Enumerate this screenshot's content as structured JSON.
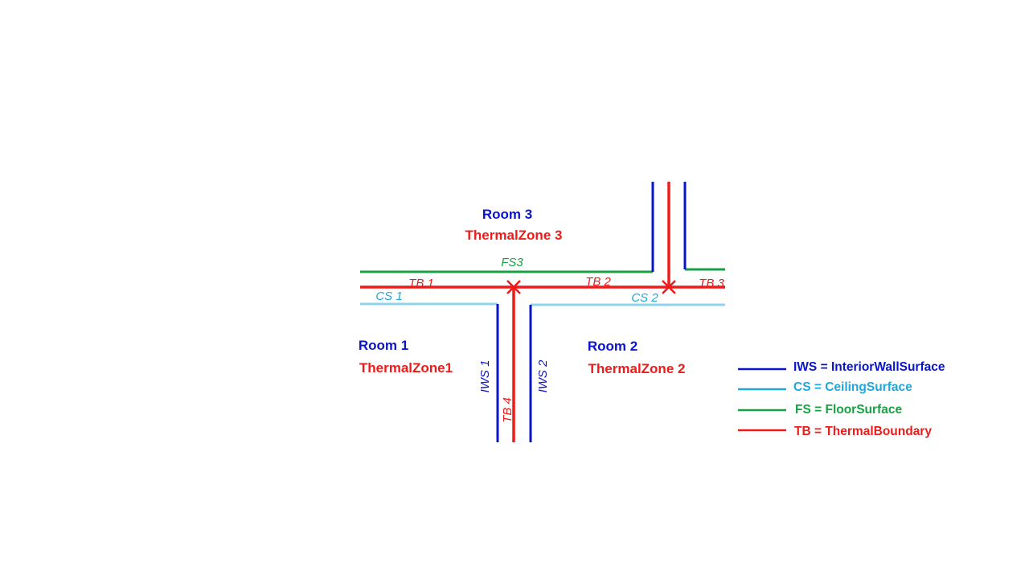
{
  "colors": {
    "iws": "#0a14c8",
    "cs": "#1ea8dc",
    "cs_line": "#8fd4ec",
    "fs": "#17a142",
    "tb": "#ee1b1b"
  },
  "rooms": [
    {
      "id": "room3",
      "room": "Room 3",
      "zone": "ThermalZone 3"
    },
    {
      "id": "room1",
      "room": "Room 1",
      "zone": "ThermalZone1"
    },
    {
      "id": "room2",
      "room": "Room 2",
      "zone": "ThermalZone 2"
    }
  ],
  "surface_labels": {
    "fs3": "FS3",
    "tb1": "TB 1",
    "tb2": "TB 2",
    "tb3": "TB 3",
    "tb4": "TB 4",
    "cs1": "CS 1",
    "cs2": "CS 2",
    "iws1": "IWS 1",
    "iws2": "IWS 2"
  },
  "legend": [
    {
      "key": "iws",
      "text": "IWS = InteriorWallSurface"
    },
    {
      "key": "cs",
      "text": "CS = CeilingSurface"
    },
    {
      "key": "fs",
      "text": "FS = FloorSurface"
    },
    {
      "key": "tb",
      "text": "TB = ThermalBoundary"
    }
  ]
}
